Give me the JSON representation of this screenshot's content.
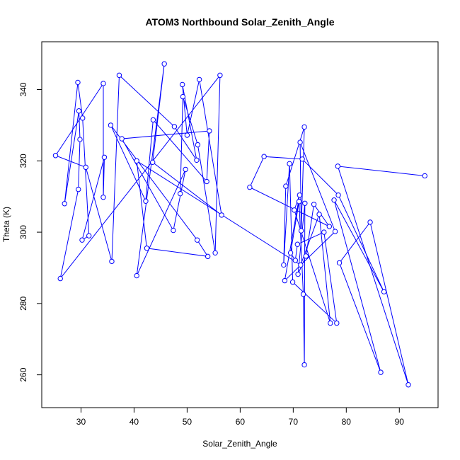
{
  "chart_data": {
    "type": "line",
    "title": "ATOM3 Northbound Solar_Zenith_Angle",
    "xlabel": "Solar_Zenith_Angle",
    "ylabel": "Theta (K)",
    "xlim": [
      22.6,
      97.3
    ],
    "ylim": [
      250.8,
      353.4
    ],
    "xticks": [
      30,
      40,
      50,
      60,
      70,
      80,
      90
    ],
    "yticks": [
      260,
      280,
      300,
      320,
      340
    ],
    "grid": false,
    "line_color": "#0000ff",
    "marker": "open-circle",
    "series": [
      {
        "x": [
          25.2,
          26.1,
          26.9,
          29.5,
          29.6,
          29.4,
          29.8,
          30.3,
          30.2,
          30.9,
          31.5,
          34.2,
          34.4,
          34.2,
          35.6,
          35.8,
          37.2,
          37.7,
          40.5,
          40.5,
          42.2,
          42.4,
          43.6,
          43.5,
          45.7,
          47.4,
          47.6,
          48.7,
          49.1,
          49.2,
          49.7,
          50.0,
          51.8,
          51.9,
          52.0,
          52.3,
          53.7,
          53.9,
          54.2,
          55.3,
          56.2,
          56.5,
          61.8,
          64.5,
          68.2,
          68.4,
          68.6,
          69.3,
          69.5,
          69.9,
          70.2,
          70.4,
          70.8,
          70.9,
          71.1,
          71.2,
          71.3,
          71.4,
          71.5,
          71.7,
          71.9,
          72.1,
          72.1,
          72.2,
          72.4,
          73.9,
          74.9,
          75.8,
          76.8,
          77.0,
          77.7,
          77.9,
          78.2,
          78.4,
          78.5,
          78.7,
          84.5,
          86.5,
          87.1,
          91.7,
          94.8
        ],
        "y": [
          321.5,
          287.0,
          308.0,
          312.0,
          334.0,
          342.0,
          326.0,
          332.0,
          297.8,
          318.2,
          299.0,
          341.7,
          321.0,
          309.8,
          330.0,
          291.8,
          344.0,
          326.2,
          287.8,
          320.0,
          308.7,
          295.5,
          331.5,
          319.6,
          347.2,
          300.5,
          329.6,
          310.8,
          341.4,
          338.0,
          317.6,
          327.2,
          320.2,
          297.8,
          324.5,
          342.8,
          314.2,
          293.2,
          328.4,
          294.2,
          344.0,
          304.8,
          312.6,
          321.2,
          290.8,
          286.4,
          312.9,
          319.2,
          294.2,
          286.0,
          306.2,
          292.1,
          296.6,
          288.2,
          308.6,
          310.4,
          325.2,
          290.8,
          300.4,
          320.5,
          282.6,
          262.8,
          329.5,
          308.1,
          293.3,
          307.8,
          305.0,
          300.0,
          301.6,
          274.5,
          309.0,
          300.2,
          274.5,
          318.5,
          310.4,
          291.4,
          302.8,
          260.7,
          283.3,
          257.2,
          315.8
        ]
      }
    ],
    "path_order": [
      27,
      29,
      34,
      39,
      40,
      1,
      3,
      6,
      4,
      2,
      5,
      7,
      10,
      8,
      12,
      13,
      11,
      0,
      9,
      15,
      16,
      26,
      32,
      28,
      31,
      35,
      41,
      23,
      24,
      18,
      30,
      25,
      17,
      38,
      36,
      22,
      20,
      14,
      33,
      37,
      21,
      19,
      57,
      66,
      69,
      50,
      55,
      45,
      71,
      56,
      58,
      62,
      46,
      44,
      47,
      49,
      72,
      67,
      52,
      51,
      48,
      54,
      60,
      61,
      63,
      53,
      64,
      65,
      68,
      42,
      43,
      59,
      74,
      78,
      70,
      77,
      75,
      76,
      79,
      73,
      80
    ]
  }
}
